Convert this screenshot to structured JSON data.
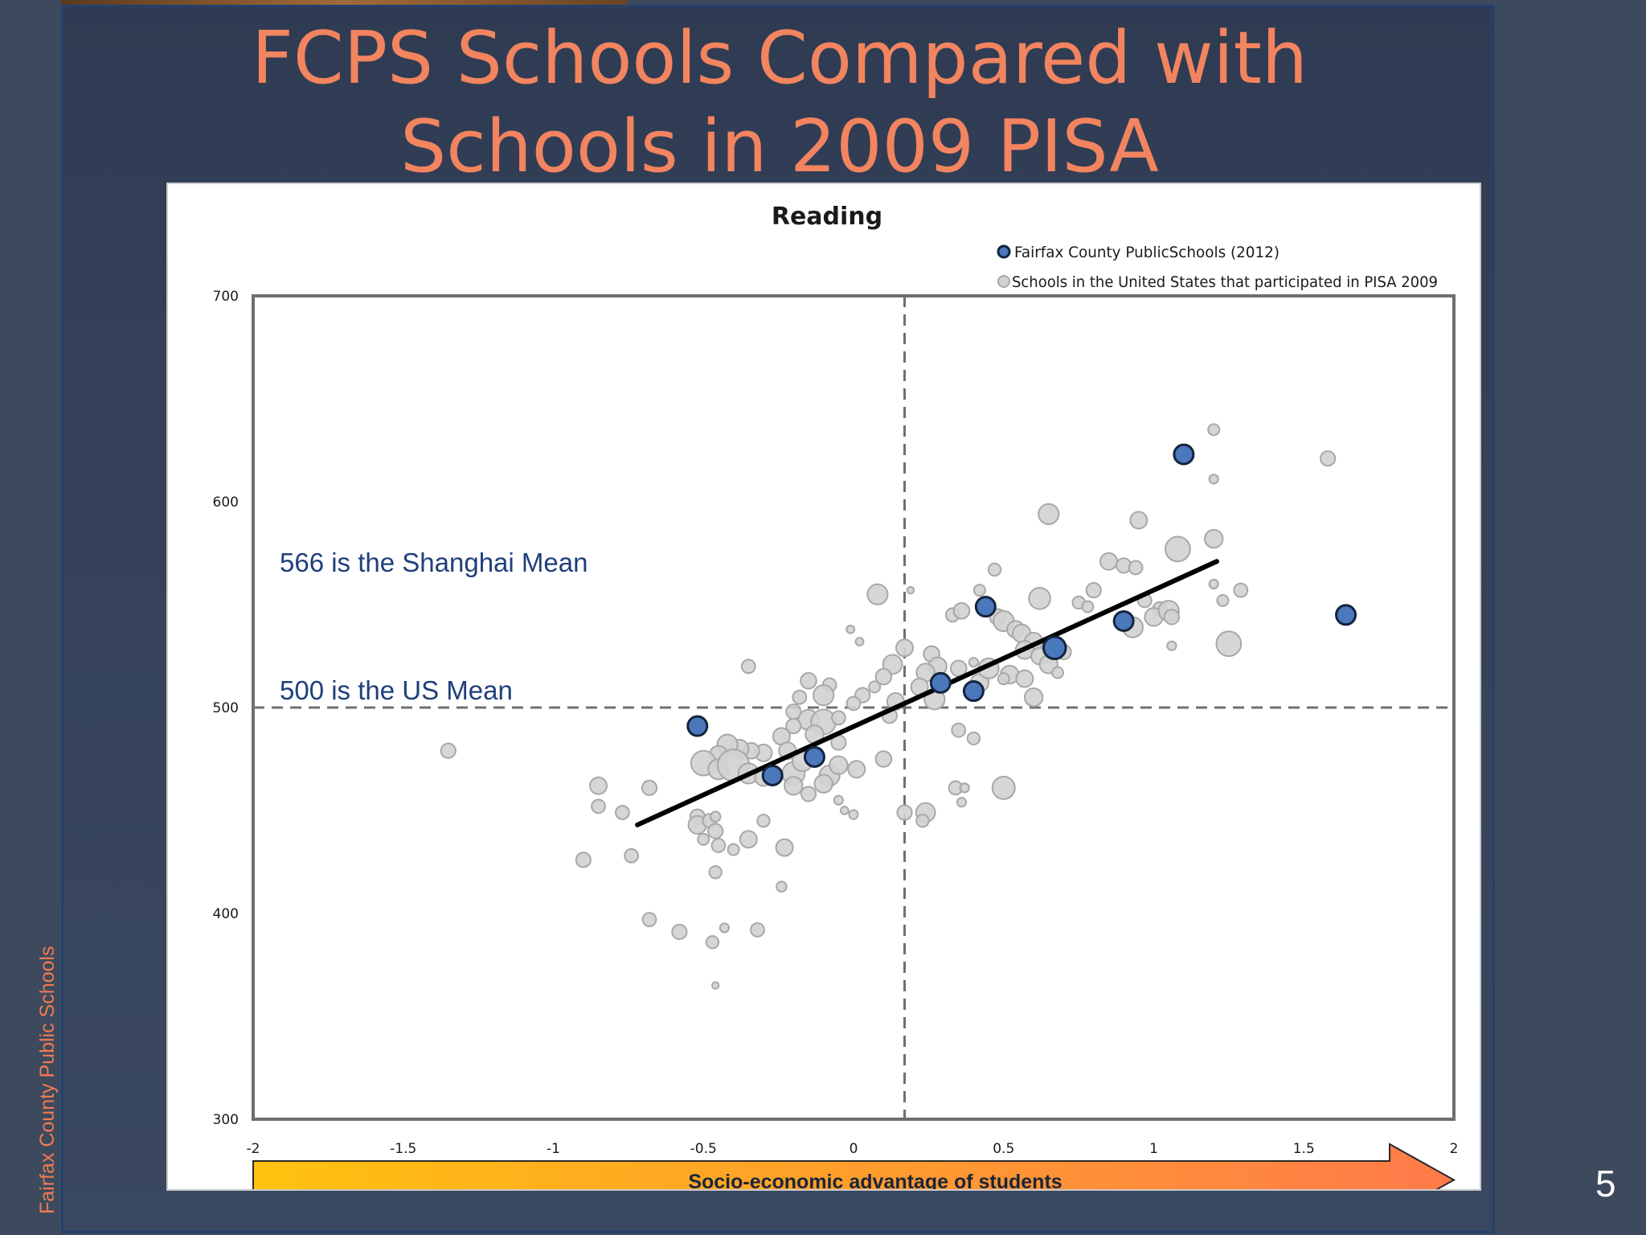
{
  "slide": {
    "title_line1": "FCPS Schools Compared with",
    "title_line2": "Schools in 2009 PISA",
    "side_label": "Fairfax County Public Schools",
    "page_number": "5"
  },
  "colors": {
    "title": "#f2845f",
    "fcps_point": "#4a78bb",
    "us_point": "#d2d2d2",
    "annotation": "#1f3f7a",
    "arrow_start": "#ffc20e",
    "arrow_end": "#ff7a4a"
  },
  "chart_data": {
    "type": "scatter",
    "title": "Reading",
    "xlim": [
      -2,
      2
    ],
    "ylim": [
      300,
      700
    ],
    "x_ticks": [
      "-2",
      "-1.5",
      "-1",
      "-0.5",
      "0",
      "0.5",
      "1",
      "1.5",
      "2"
    ],
    "y_ticks": [
      "700",
      "600",
      "500",
      "400",
      "300"
    ],
    "xlabel": "Socio-economic advantage of students",
    "legend": {
      "position": "top-right",
      "fcps": "Fairfax County PublicSchools (2012)",
      "us": "Schools in the United States that participated in PISA 2009"
    },
    "reference_lines": {
      "x": 0.17,
      "y": 500
    },
    "annotations": {
      "shanghai": "566 is the Shanghai Mean",
      "us_mean": "500 is the US Mean"
    },
    "trend_line": {
      "x": [
        -0.72,
        1.21
      ],
      "y": [
        443,
        571
      ]
    },
    "series": [
      {
        "name": "Fairfax County PublicSchools (2012)",
        "points": [
          [
            1.1,
            623,
            2
          ],
          [
            1.64,
            545,
            2
          ],
          [
            0.44,
            549,
            2
          ],
          [
            0.9,
            542,
            2
          ],
          [
            0.67,
            529,
            2.3
          ],
          [
            0.29,
            512,
            2
          ],
          [
            0.4,
            508,
            2
          ],
          [
            -0.52,
            491,
            2
          ],
          [
            -0.27,
            467,
            2
          ],
          [
            -0.13,
            476,
            2
          ]
        ]
      },
      {
        "name": "Schools in the United States that participated in PISA 2009",
        "points": [
          [
            1.2,
            635,
            1
          ],
          [
            1.58,
            621,
            1.3
          ],
          [
            1.2,
            611,
            0.8
          ],
          [
            0.65,
            594,
            1.8
          ],
          [
            0.95,
            591,
            1.5
          ],
          [
            1.2,
            582,
            1.6
          ],
          [
            1.08,
            577,
            2.2
          ],
          [
            0.47,
            567,
            1.1
          ],
          [
            0.85,
            571,
            1.5
          ],
          [
            0.9,
            569,
            1.3
          ],
          [
            0.94,
            568,
            1.2
          ],
          [
            1.2,
            560,
            0.8
          ],
          [
            1.29,
            557,
            1.2
          ],
          [
            1.23,
            552,
            1
          ],
          [
            0.08,
            555,
            1.8
          ],
          [
            0.19,
            557,
            0.6
          ],
          [
            0.62,
            553,
            1.9
          ],
          [
            0.42,
            557,
            1
          ],
          [
            0.8,
            557,
            1.3
          ],
          [
            0.75,
            551,
            1.1
          ],
          [
            0.78,
            549,
            1
          ],
          [
            0.97,
            552,
            1.2
          ],
          [
            1.02,
            548,
            1.2
          ],
          [
            0.33,
            545,
            1.2
          ],
          [
            0.36,
            547,
            1.4
          ],
          [
            0.48,
            544,
            1.4
          ],
          [
            0.5,
            542,
            1.8
          ],
          [
            0.54,
            538,
            1.5
          ],
          [
            0.56,
            536,
            1.6
          ],
          [
            0.6,
            532,
            1.6
          ],
          [
            0.57,
            528,
            1.6
          ],
          [
            0.62,
            525,
            1.5
          ],
          [
            0.65,
            521,
            1.6
          ],
          [
            0.7,
            527,
            1.3
          ],
          [
            1.0,
            544,
            1.6
          ],
          [
            0.93,
            539,
            1.8
          ],
          [
            1.05,
            547,
            1.8
          ],
          [
            1.06,
            544,
            1.3
          ],
          [
            1.25,
            531,
            2.2
          ],
          [
            1.06,
            530,
            0.8
          ],
          [
            0.68,
            517,
            1
          ],
          [
            0.35,
            519,
            1.4
          ],
          [
            0.4,
            522,
            0.8
          ],
          [
            0.42,
            512,
            1.6
          ],
          [
            0.45,
            519,
            1.8
          ],
          [
            0.52,
            516,
            1.6
          ],
          [
            0.57,
            514,
            1.5
          ],
          [
            0.6,
            505,
            1.6
          ],
          [
            0.5,
            514,
            1
          ],
          [
            0.26,
            526,
            1.4
          ],
          [
            0.28,
            520,
            1.6
          ],
          [
            0.24,
            517,
            1.6
          ],
          [
            0.22,
            510,
            1.5
          ],
          [
            0.27,
            504,
            1.8
          ],
          [
            0.17,
            529,
            1.5
          ],
          [
            0.13,
            521,
            1.7
          ],
          [
            -0.01,
            538,
            0.7
          ],
          [
            0.02,
            532,
            0.7
          ],
          [
            0.1,
            515,
            1.4
          ],
          [
            0.07,
            510,
            1
          ],
          [
            0.03,
            506,
            1.3
          ],
          [
            0.0,
            502,
            1.2
          ],
          [
            0.14,
            503,
            1.5
          ],
          [
            0.12,
            496,
            1.3
          ],
          [
            0.35,
            489,
            1.2
          ],
          [
            0.4,
            485,
            1.1
          ],
          [
            -0.35,
            520,
            1.2
          ],
          [
            -0.15,
            513,
            1.4
          ],
          [
            -0.08,
            511,
            1.2
          ],
          [
            -0.1,
            506,
            1.8
          ],
          [
            -0.18,
            505,
            1.2
          ],
          [
            -0.2,
            498,
            1.3
          ],
          [
            -0.15,
            494,
            1.8
          ],
          [
            -0.1,
            493,
            2.2
          ],
          [
            -0.05,
            495,
            1.2
          ],
          [
            -0.05,
            483,
            1.3
          ],
          [
            -0.13,
            487,
            1.6
          ],
          [
            -0.2,
            491,
            1.3
          ],
          [
            -0.24,
            486,
            1.5
          ],
          [
            -0.22,
            479,
            1.5
          ],
          [
            -0.3,
            478,
            1.5
          ],
          [
            -0.34,
            479,
            1.4
          ],
          [
            -0.38,
            480,
            1.6
          ],
          [
            -0.42,
            482,
            1.8
          ],
          [
            -0.45,
            477,
            1.6
          ],
          [
            -0.5,
            473,
            2.2
          ],
          [
            -0.45,
            470,
            1.8
          ],
          [
            -0.4,
            472,
            2.8
          ],
          [
            -0.35,
            468,
            1.8
          ],
          [
            -0.3,
            466,
            1.5
          ],
          [
            -0.2,
            468,
            2
          ],
          [
            -0.17,
            474,
            1.8
          ],
          [
            -0.08,
            467,
            1.8
          ],
          [
            -0.05,
            472,
            1.6
          ],
          [
            0.01,
            470,
            1.5
          ],
          [
            0.1,
            475,
            1.4
          ],
          [
            -0.2,
            462,
            1.6
          ],
          [
            -0.15,
            458,
            1.3
          ],
          [
            -0.1,
            463,
            1.6
          ],
          [
            -0.05,
            455,
            0.8
          ],
          [
            0.0,
            448,
            0.8
          ],
          [
            -0.03,
            450,
            0.7
          ],
          [
            -0.85,
            462,
            1.5
          ],
          [
            -0.85,
            452,
            1.2
          ],
          [
            -1.35,
            479,
            1.3
          ],
          [
            -0.77,
            449,
            1.2
          ],
          [
            -0.68,
            461,
            1.3
          ],
          [
            -0.52,
            447,
            1.3
          ],
          [
            -0.52,
            443,
            1.6
          ],
          [
            -0.48,
            445,
            1.2
          ],
          [
            -0.46,
            447,
            0.9
          ],
          [
            -0.46,
            440,
            1.3
          ],
          [
            -0.45,
            433,
            1.2
          ],
          [
            -0.5,
            436,
            1
          ],
          [
            -0.35,
            436,
            1.5
          ],
          [
            -0.23,
            432,
            1.5
          ],
          [
            -0.4,
            431,
            1
          ],
          [
            -0.3,
            445,
            1.1
          ],
          [
            -0.9,
            426,
            1.3
          ],
          [
            -0.74,
            428,
            1.2
          ],
          [
            -0.46,
            420,
            1.1
          ],
          [
            -0.24,
            413,
            0.9
          ],
          [
            -0.68,
            397,
            1.2
          ],
          [
            -0.58,
            391,
            1.3
          ],
          [
            -0.47,
            386,
            1.1
          ],
          [
            -0.43,
            393,
            0.8
          ],
          [
            -0.32,
            392,
            1.2
          ],
          [
            -0.46,
            365,
            0.6
          ],
          [
            0.17,
            449,
            1.3
          ],
          [
            0.24,
            449,
            1.7
          ],
          [
            0.23,
            445,
            1.1
          ],
          [
            0.34,
            461,
            1.2
          ],
          [
            0.37,
            461,
            0.8
          ],
          [
            0.36,
            454,
            0.8
          ],
          [
            0.5,
            461,
            2
          ]
        ]
      }
    ]
  }
}
